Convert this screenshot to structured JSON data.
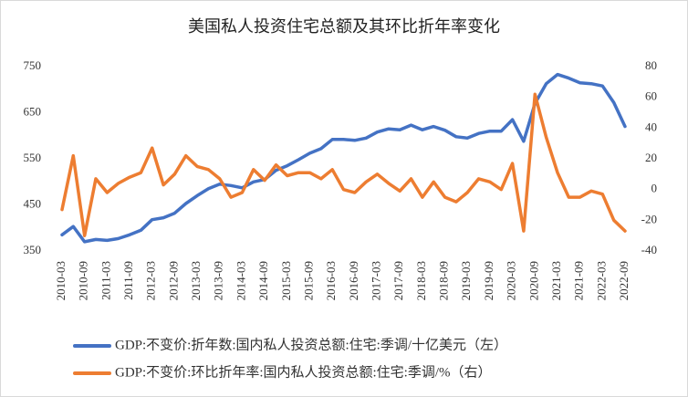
{
  "chart_data": {
    "type": "line",
    "title": "美国私人投资住宅总额及其环比折年率变化",
    "categories": [
      "2010-03",
      null,
      "2010-09",
      null,
      "2011-03",
      null,
      "2011-09",
      null,
      "2012-03",
      null,
      "2012-09",
      null,
      "2013-03",
      null,
      "2013-09",
      null,
      "2014-03",
      null,
      "2014-09",
      null,
      "2015-03",
      null,
      "2015-09",
      null,
      "2016-03",
      null,
      "2016-09",
      null,
      "2017-03",
      null,
      "2017-09",
      null,
      "2018-03",
      null,
      "2018-09",
      null,
      "2019-03",
      null,
      "2019-09",
      null,
      "2020-03",
      null,
      "2020-09",
      null,
      "2021-03",
      null,
      "2021-09",
      null,
      "2022-03",
      null,
      "2022-09"
    ],
    "series": [
      {
        "name": "GDP:不变价:折年数:国内私人投资总额:住宅:季调/十亿美元（左）",
        "color": "#4472c4",
        "axis": "y",
        "values": [
          385,
          403,
          370,
          375,
          373,
          377,
          385,
          395,
          418,
          422,
          432,
          453,
          470,
          485,
          495,
          492,
          487,
          500,
          505,
          525,
          535,
          548,
          562,
          572,
          592,
          592,
          590,
          595,
          608,
          615,
          613,
          623,
          613,
          620,
          612,
          598,
          595,
          605,
          610,
          610,
          635,
          588,
          670,
          713,
          733,
          725,
          715,
          713,
          708,
          672,
          620
        ]
      },
      {
        "name": "GDP:不变价:环比折年率:国内私人投资总额:住宅:季调/%（右）",
        "color": "#ed7d31",
        "axis": "y2",
        "values": [
          -13,
          22,
          -30,
          7,
          -2,
          4,
          8,
          11,
          27,
          3,
          10,
          22,
          15,
          13,
          7,
          -5,
          -2,
          13,
          6,
          16,
          9,
          11,
          11,
          7,
          13,
          0,
          -2,
          5,
          10,
          4,
          -1,
          7,
          -5,
          5,
          -5,
          -8,
          -2,
          7,
          5,
          0,
          17,
          -27,
          62,
          34,
          11,
          -5,
          -5,
          -1,
          -3,
          -20,
          -27
        ]
      }
    ],
    "ylim": [
      350,
      750
    ],
    "yticks": [
      350,
      450,
      550,
      650,
      750
    ],
    "y2lim": [
      -40,
      80
    ],
    "y2ticks": [
      -40,
      -20,
      0,
      20,
      40,
      60,
      80
    ],
    "legend": "bottom"
  }
}
